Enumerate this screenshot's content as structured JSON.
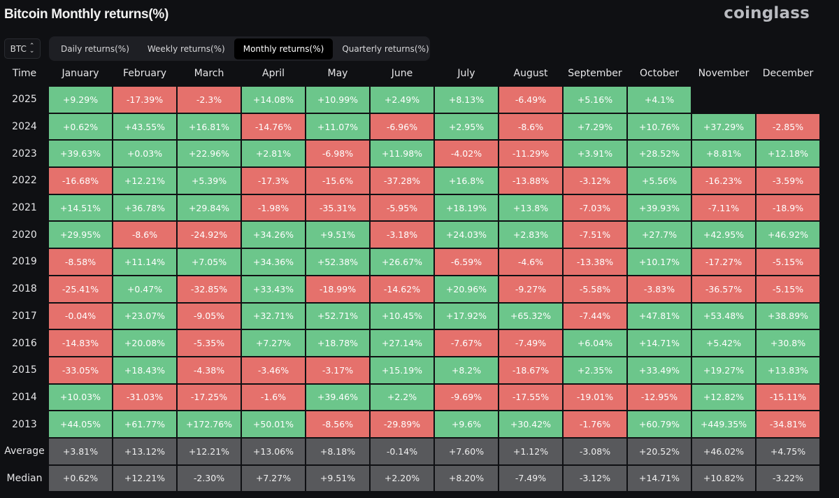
{
  "header": {
    "title": "Bitcoin Monthly returns(%)",
    "logo": "coinglass"
  },
  "selector": {
    "value": "BTC",
    "icon": "chevron-up-down-icon"
  },
  "tabs": [
    {
      "label": "Daily returns(%)",
      "active": false
    },
    {
      "label": "Weekly returns(%)",
      "active": false
    },
    {
      "label": "Monthly returns(%)",
      "active": true
    },
    {
      "label": "Quarterly returns(%)",
      "active": false
    }
  ],
  "colors": {
    "positive": "#6cc68b",
    "negative": "#e5716c",
    "summary": "#58595c",
    "background": "#0f1013"
  },
  "chart_data": {
    "type": "heatmap",
    "title": "Bitcoin Monthly returns(%)",
    "corner_label": "Time",
    "columns": [
      "January",
      "February",
      "March",
      "April",
      "May",
      "June",
      "July",
      "August",
      "September",
      "October",
      "November",
      "December"
    ],
    "rows": [
      {
        "label": "2025",
        "values": [
          "+9.29%",
          "-17.39%",
          "-2.3%",
          "+14.08%",
          "+10.99%",
          "+2.49%",
          "+8.13%",
          "-6.49%",
          "+5.16%",
          "+4.1%",
          "",
          ""
        ]
      },
      {
        "label": "2024",
        "values": [
          "+0.62%",
          "+43.55%",
          "+16.81%",
          "-14.76%",
          "+11.07%",
          "-6.96%",
          "+2.95%",
          "-8.6%",
          "+7.29%",
          "+10.76%",
          "+37.29%",
          "-2.85%"
        ]
      },
      {
        "label": "2023",
        "values": [
          "+39.63%",
          "+0.03%",
          "+22.96%",
          "+2.81%",
          "-6.98%",
          "+11.98%",
          "-4.02%",
          "-11.29%",
          "+3.91%",
          "+28.52%",
          "+8.81%",
          "+12.18%"
        ]
      },
      {
        "label": "2022",
        "values": [
          "-16.68%",
          "+12.21%",
          "+5.39%",
          "-17.3%",
          "-15.6%",
          "-37.28%",
          "+16.8%",
          "-13.88%",
          "-3.12%",
          "+5.56%",
          "-16.23%",
          "-3.59%"
        ]
      },
      {
        "label": "2021",
        "values": [
          "+14.51%",
          "+36.78%",
          "+29.84%",
          "-1.98%",
          "-35.31%",
          "-5.95%",
          "+18.19%",
          "+13.8%",
          "-7.03%",
          "+39.93%",
          "-7.11%",
          "-18.9%"
        ]
      },
      {
        "label": "2020",
        "values": [
          "+29.95%",
          "-8.6%",
          "-24.92%",
          "+34.26%",
          "+9.51%",
          "-3.18%",
          "+24.03%",
          "+2.83%",
          "-7.51%",
          "+27.7%",
          "+42.95%",
          "+46.92%"
        ]
      },
      {
        "label": "2019",
        "values": [
          "-8.58%",
          "+11.14%",
          "+7.05%",
          "+34.36%",
          "+52.38%",
          "+26.67%",
          "-6.59%",
          "-4.6%",
          "-13.38%",
          "+10.17%",
          "-17.27%",
          "-5.15%"
        ]
      },
      {
        "label": "2018",
        "values": [
          "-25.41%",
          "+0.47%",
          "-32.85%",
          "+33.43%",
          "-18.99%",
          "-14.62%",
          "+20.96%",
          "-9.27%",
          "-5.58%",
          "-3.83%",
          "-36.57%",
          "-5.15%"
        ]
      },
      {
        "label": "2017",
        "values": [
          "-0.04%",
          "+23.07%",
          "-9.05%",
          "+32.71%",
          "+52.71%",
          "+10.45%",
          "+17.92%",
          "+65.32%",
          "-7.44%",
          "+47.81%",
          "+53.48%",
          "+38.89%"
        ]
      },
      {
        "label": "2016",
        "values": [
          "-14.83%",
          "+20.08%",
          "-5.35%",
          "+7.27%",
          "+18.78%",
          "+27.14%",
          "-7.67%",
          "-7.49%",
          "+6.04%",
          "+14.71%",
          "+5.42%",
          "+30.8%"
        ]
      },
      {
        "label": "2015",
        "values": [
          "-33.05%",
          "+18.43%",
          "-4.38%",
          "-3.46%",
          "-3.17%",
          "+15.19%",
          "+8.2%",
          "-18.67%",
          "+2.35%",
          "+33.49%",
          "+19.27%",
          "+13.83%"
        ]
      },
      {
        "label": "2014",
        "values": [
          "+10.03%",
          "-31.03%",
          "-17.25%",
          "-1.6%",
          "+39.46%",
          "+2.2%",
          "-9.69%",
          "-17.55%",
          "-19.01%",
          "-12.95%",
          "+12.82%",
          "-15.11%"
        ]
      },
      {
        "label": "2013",
        "values": [
          "+44.05%",
          "+61.77%",
          "+172.76%",
          "+50.01%",
          "-8.56%",
          "-29.89%",
          "+9.6%",
          "+30.42%",
          "-1.76%",
          "+60.79%",
          "+449.35%",
          "-34.81%"
        ]
      }
    ],
    "summary_rows": [
      {
        "label": "Average",
        "values": [
          "+3.81%",
          "+13.12%",
          "+12.21%",
          "+13.06%",
          "+8.18%",
          "-0.14%",
          "+7.60%",
          "+1.12%",
          "-3.08%",
          "+20.52%",
          "+46.02%",
          "+4.75%"
        ]
      },
      {
        "label": "Median",
        "values": [
          "+0.62%",
          "+12.21%",
          "-2.30%",
          "+7.27%",
          "+9.51%",
          "+2.20%",
          "+8.20%",
          "-7.49%",
          "-3.12%",
          "+14.71%",
          "+10.82%",
          "-3.22%"
        ]
      }
    ]
  }
}
